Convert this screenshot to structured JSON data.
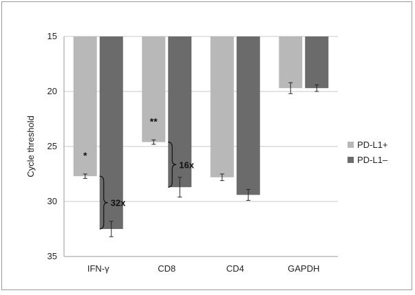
{
  "chart_data": {
    "type": "bar",
    "ylabel": "Cycle threshold",
    "ylim": [
      15,
      35
    ],
    "y_inverted": true,
    "yticks": [
      "15",
      "20",
      "25",
      "30",
      "35"
    ],
    "grid": true,
    "legend_position": "right",
    "categories": [
      "IFN-γ",
      "CD8",
      "CD4",
      "GAPDH"
    ],
    "series": [
      {
        "name": "PD-L1+",
        "color": "#b8b8b8",
        "values": [
          27.7,
          24.6,
          27.8,
          19.7
        ],
        "errors": [
          0.2,
          0.2,
          0.3,
          0.5
        ]
      },
      {
        "name": "PD-L1–",
        "color": "#6b6b6b",
        "values": [
          32.5,
          28.7,
          29.4,
          19.7
        ],
        "errors": [
          0.7,
          0.9,
          0.5,
          0.3
        ]
      }
    ],
    "annotations": [
      {
        "category": "IFN-γ",
        "significance": "*",
        "fold_change": "32x"
      },
      {
        "category": "CD8",
        "significance": "**",
        "fold_change": "16x"
      }
    ]
  }
}
